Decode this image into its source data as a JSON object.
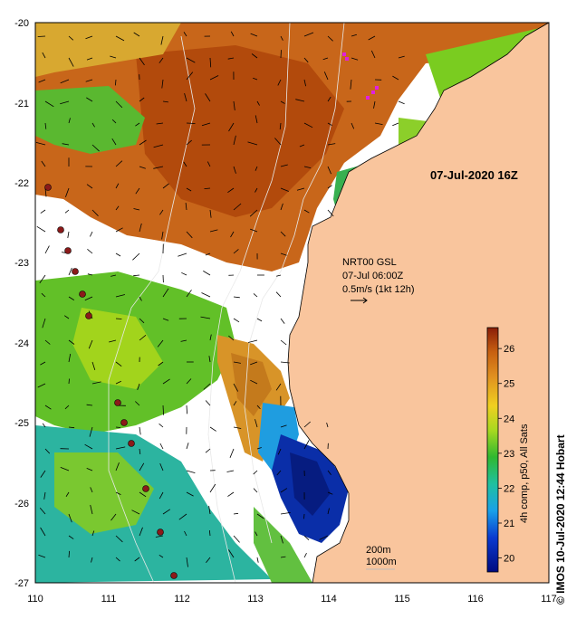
{
  "map": {
    "lon_ticks": [
      "110",
      "111",
      "112",
      "113",
      "114",
      "115",
      "116",
      "117"
    ],
    "lat_ticks": [
      "-20",
      "-21",
      "-22",
      "-23",
      "-24",
      "-25",
      "-26",
      "-27"
    ],
    "date_label": "07-Jul-2020 16Z",
    "current_info": {
      "line1": "NRT00 GSL",
      "line2": "07-Jul 06:00Z",
      "line3": "0.5m/s (1kt 12h)"
    },
    "depth_contours": {
      "shallow": "200m",
      "deep": "1000m"
    },
    "colorbar": {
      "title": "4h comp, p50, All Sats",
      "ticks": [
        "20",
        "21",
        "22",
        "23",
        "24",
        "25",
        "26"
      ],
      "min": 19.6,
      "max": 26.6
    },
    "credit": "© IMOS 10-Jul-2020 12:44 Hobart",
    "colors": {
      "land": "#f9c59d",
      "sst_warm": "#c05a0a",
      "sst_cool": "#0a1f8a",
      "mooring_dot": "#8b1a1a"
    }
  }
}
